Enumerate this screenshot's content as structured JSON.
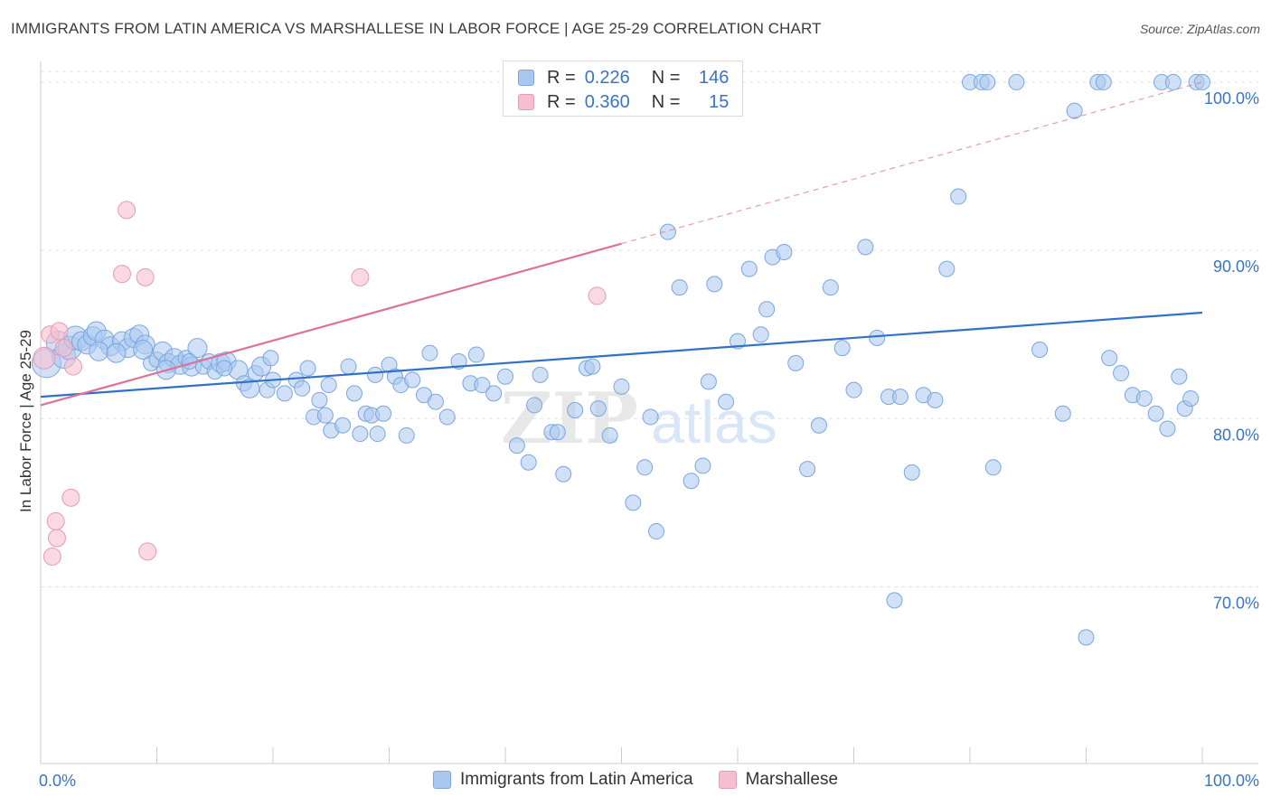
{
  "header": {
    "title": "IMMIGRANTS FROM LATIN AMERICA VS MARSHALLESE IN LABOR FORCE | AGE 25-29 CORRELATION CHART",
    "source": "Source: ZipAtlas.com"
  },
  "legend_top": [
    {
      "r_label": "R =",
      "r_value": "0.226",
      "n_label": "N =",
      "n_value": "146"
    },
    {
      "r_label": "R =",
      "r_value": "0.360",
      "n_label": "N =",
      "n_value": "15"
    }
  ],
  "watermark": {
    "part1": "ZIP",
    "part2": "atlas"
  },
  "colors": {
    "blue_fill": "#a9c8f0",
    "blue_stroke": "#7aa6de",
    "blue_line": "#2f72c8",
    "pink_fill": "#f6bfd0",
    "pink_stroke": "#e89ab3",
    "pink_line": "#e0709a",
    "grid": "#e3e3e3",
    "tick_label": "#3a75c4"
  },
  "chart_data": {
    "type": "scatter",
    "title": "IMMIGRANTS FROM LATIN AMERICA VS MARSHALLESE IN LABOR FORCE | AGE 25-29 CORRELATION CHART",
    "xlabel": "",
    "ylabel": "In Labor Force | Age 25-29",
    "xlim": [
      0,
      100
    ],
    "ylim": [
      59.5,
      101.5
    ],
    "x_tick_labels": [
      "0.0%",
      "100.0%"
    ],
    "y_ticks": [
      70,
      80,
      90,
      100
    ],
    "y_tick_labels": [
      "70.0%",
      "80.0%",
      "90.0%",
      "100.0%"
    ],
    "grid": true,
    "legend_position": "bottom",
    "series": [
      {
        "name": "Immigrants from Latin America",
        "r": 0.226,
        "n": 146,
        "trend": {
          "x": [
            0,
            100
          ],
          "y": [
            81.3,
            86.3
          ],
          "dashed_from": null
        },
        "points": [
          [
            0.5,
            83.3,
            3
          ],
          [
            1.5,
            84.5,
            2
          ],
          [
            2.0,
            83.7,
            2
          ],
          [
            2.5,
            84.2,
            2
          ],
          [
            3.0,
            84.8,
            2
          ],
          [
            3.5,
            84.6,
            1
          ],
          [
            4.0,
            84.4,
            1
          ],
          [
            4.5,
            84.9,
            1
          ],
          [
            4.8,
            85.2,
            1
          ],
          [
            5.5,
            84.7,
            1
          ],
          [
            6.0,
            84.3,
            1
          ],
          [
            7.0,
            84.6,
            1
          ],
          [
            7.5,
            84.2,
            1
          ],
          [
            8.0,
            84.8,
            1
          ],
          [
            8.5,
            85.0,
            1
          ],
          [
            9.0,
            84.4,
            1
          ],
          [
            9.5,
            83.3,
            0
          ],
          [
            10.0,
            83.5,
            0
          ],
          [
            10.5,
            84.0,
            1
          ],
          [
            11.0,
            83.3,
            1
          ],
          [
            11.5,
            83.6,
            1
          ],
          [
            12.0,
            83.2,
            1
          ],
          [
            12.5,
            83.6,
            0
          ],
          [
            13.0,
            83.1,
            1
          ],
          [
            13.5,
            84.2,
            1
          ],
          [
            14.0,
            83.1,
            0
          ],
          [
            14.5,
            83.4,
            0
          ],
          [
            15.0,
            82.8,
            0
          ],
          [
            15.5,
            83.3,
            1
          ],
          [
            16.0,
            83.4,
            1
          ],
          [
            17.0,
            82.9,
            1
          ],
          [
            17.5,
            82.1,
            0
          ],
          [
            18.0,
            81.8,
            1
          ],
          [
            18.5,
            82.7,
            0
          ],
          [
            19.0,
            83.1,
            1
          ],
          [
            19.5,
            81.7,
            0
          ],
          [
            20.0,
            82.3,
            0
          ],
          [
            21.0,
            81.5,
            0
          ],
          [
            22.0,
            82.3,
            0
          ],
          [
            22.5,
            81.8,
            0
          ],
          [
            23.0,
            83.0,
            0
          ],
          [
            23.5,
            80.1,
            0
          ],
          [
            24.0,
            81.1,
            0
          ],
          [
            24.5,
            80.2,
            0
          ],
          [
            25.0,
            79.3,
            0
          ],
          [
            26.0,
            79.6,
            0
          ],
          [
            26.5,
            83.1,
            0
          ],
          [
            27.0,
            81.5,
            0
          ],
          [
            27.5,
            79.1,
            0
          ],
          [
            28.0,
            80.3,
            0
          ],
          [
            28.5,
            80.2,
            0
          ],
          [
            29.0,
            79.1,
            0
          ],
          [
            29.5,
            80.3,
            0
          ],
          [
            30.0,
            83.2,
            0
          ],
          [
            30.5,
            82.5,
            0
          ],
          [
            31.0,
            82.0,
            0
          ],
          [
            31.5,
            79.0,
            0
          ],
          [
            32.0,
            82.3,
            0
          ],
          [
            33.0,
            81.4,
            0
          ],
          [
            34.0,
            81.0,
            0
          ],
          [
            35.0,
            80.1,
            0
          ],
          [
            36.0,
            83.4,
            0
          ],
          [
            37.0,
            82.1,
            0
          ],
          [
            38.0,
            82.0,
            0
          ],
          [
            39.0,
            81.5,
            0
          ],
          [
            40.0,
            82.5,
            0
          ],
          [
            41.0,
            78.4,
            0
          ],
          [
            42.0,
            77.4,
            0
          ],
          [
            43.0,
            82.6,
            0
          ],
          [
            44.0,
            79.2,
            0
          ],
          [
            44.5,
            79.2,
            0
          ],
          [
            45.0,
            76.7,
            0
          ],
          [
            46.0,
            80.5,
            0
          ],
          [
            47.0,
            83.0,
            0
          ],
          [
            48.0,
            80.6,
            0
          ],
          [
            49.0,
            79.0,
            0
          ],
          [
            50.0,
            81.9,
            0
          ],
          [
            51.0,
            75.0,
            0
          ],
          [
            52.0,
            77.1,
            0
          ],
          [
            53.0,
            73.3,
            0
          ],
          [
            54.0,
            91.1,
            0
          ],
          [
            55.0,
            87.8,
            0
          ],
          [
            56.0,
            76.3,
            0
          ],
          [
            57.0,
            77.2,
            0
          ],
          [
            58.0,
            88.0,
            0
          ],
          [
            59.0,
            81.0,
            0
          ],
          [
            60.0,
            84.6,
            0
          ],
          [
            61.0,
            88.9,
            0
          ],
          [
            62.0,
            85.0,
            0
          ],
          [
            62.5,
            86.5,
            0
          ],
          [
            63.0,
            89.6,
            0
          ],
          [
            64.0,
            89.9,
            0
          ],
          [
            65.0,
            83.3,
            0
          ],
          [
            66.0,
            77.0,
            0
          ],
          [
            67.0,
            79.6,
            0
          ],
          [
            68.0,
            87.8,
            0
          ],
          [
            69.0,
            84.2,
            0
          ],
          [
            70.0,
            81.7,
            0
          ],
          [
            71.0,
            90.2,
            0
          ],
          [
            72.0,
            84.8,
            0
          ],
          [
            73.0,
            81.3,
            0
          ],
          [
            73.5,
            69.2,
            0
          ],
          [
            74.0,
            81.3,
            0
          ],
          [
            75.0,
            76.8,
            0
          ],
          [
            76.0,
            81.4,
            0
          ],
          [
            77.0,
            81.1,
            0
          ],
          [
            78.0,
            88.9,
            0
          ],
          [
            79.0,
            93.2,
            0
          ],
          [
            80.0,
            100.0,
            0
          ],
          [
            81.0,
            100.0,
            0
          ],
          [
            81.5,
            100.0,
            0
          ],
          [
            82.0,
            77.1,
            0
          ],
          [
            84.0,
            100.0,
            0
          ],
          [
            86.0,
            84.1,
            0
          ],
          [
            88.0,
            80.3,
            0
          ],
          [
            89.0,
            98.3,
            0
          ],
          [
            90.0,
            67.0,
            0
          ],
          [
            91.0,
            100.0,
            0
          ],
          [
            91.5,
            100.0,
            0
          ],
          [
            92.0,
            83.6,
            0
          ],
          [
            93.0,
            82.7,
            0
          ],
          [
            94.0,
            81.4,
            0
          ],
          [
            95.0,
            81.2,
            0
          ],
          [
            96.0,
            80.3,
            0
          ],
          [
            96.5,
            100.0,
            0
          ],
          [
            97.0,
            79.4,
            0
          ],
          [
            97.5,
            100.0,
            0
          ],
          [
            98.0,
            82.5,
            0
          ],
          [
            98.5,
            80.6,
            0
          ],
          [
            99.0,
            81.2,
            0
          ],
          [
            99.5,
            100.0,
            0
          ],
          [
            100.0,
            100.0,
            0
          ],
          [
            5.0,
            84.0,
            1
          ],
          [
            6.5,
            83.9,
            1
          ],
          [
            8.8,
            84.1,
            1
          ],
          [
            10.8,
            82.9,
            1
          ],
          [
            12.8,
            83.4,
            0
          ],
          [
            15.8,
            83.0,
            0
          ],
          [
            19.8,
            83.6,
            0
          ],
          [
            24.8,
            82.0,
            0
          ],
          [
            28.8,
            82.6,
            0
          ],
          [
            33.5,
            83.9,
            0
          ],
          [
            37.5,
            83.8,
            0
          ],
          [
            42.5,
            80.8,
            0
          ],
          [
            47.5,
            83.1,
            0
          ],
          [
            52.5,
            80.1,
            0
          ],
          [
            57.5,
            82.2,
            0
          ]
        ]
      },
      {
        "name": "Marshallese",
        "r": 0.36,
        "n": 15,
        "trend": {
          "x": [
            0,
            100
          ],
          "y": [
            80.8,
            100.0
          ],
          "dashed_from": 50
        },
        "points": [
          [
            0.3,
            83.6,
            2
          ],
          [
            0.8,
            85.0,
            1
          ],
          [
            1.6,
            85.2,
            1
          ],
          [
            2.0,
            84.2,
            1
          ],
          [
            2.8,
            83.1,
            1
          ],
          [
            1.3,
            73.9,
            1
          ],
          [
            1.4,
            72.9,
            1
          ],
          [
            1.0,
            71.8,
            1
          ],
          [
            2.6,
            75.3,
            1
          ],
          [
            7.0,
            88.6,
            1
          ],
          [
            7.4,
            92.4,
            1
          ],
          [
            9.0,
            88.4,
            1
          ],
          [
            9.2,
            72.1,
            1
          ],
          [
            27.5,
            88.4,
            1
          ],
          [
            47.9,
            87.3,
            1
          ]
        ]
      }
    ]
  },
  "bottom_legend": [
    {
      "label": "Immigrants from Latin America"
    },
    {
      "label": "Marshallese"
    }
  ]
}
